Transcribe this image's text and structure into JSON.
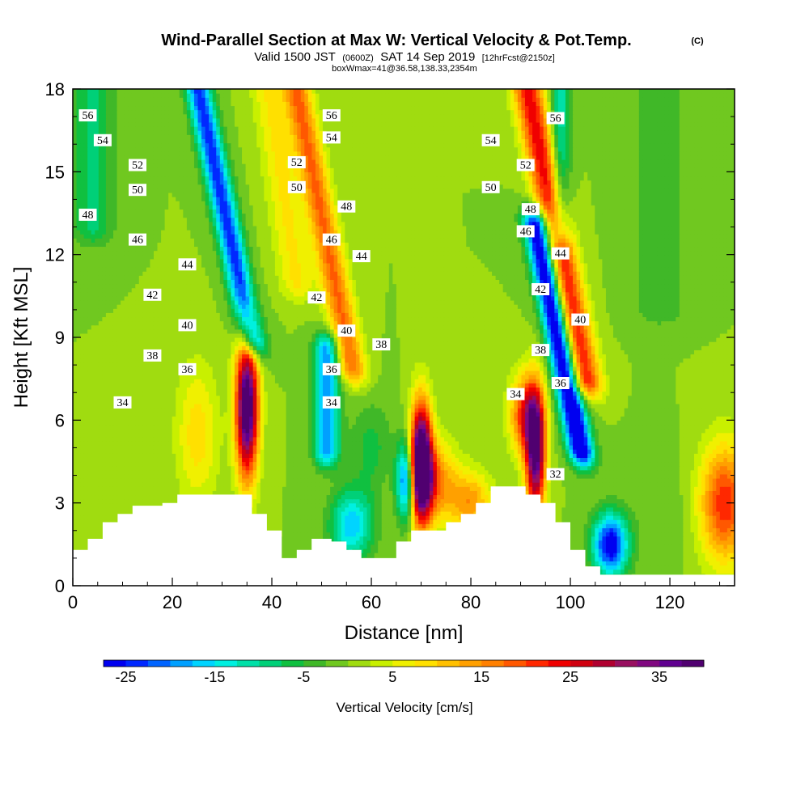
{
  "chart_data": {
    "type": "heatmap",
    "title": "Wind-Parallel Section at Max W: Vertical Velocity & Pot.Temp.",
    "title_mark": "(C)",
    "subtitle_parts": [
      "Valid 1500 JST",
      "(0600Z)",
      "SAT 14 Sep 2019",
      "[12hrFcst@2150z]"
    ],
    "subtitle2": "boxWmax=41@36.58,138.33,2354m",
    "xlabel": "Distance [nm]",
    "ylabel": "Height [Kft MSL]",
    "xlim": [
      0,
      133
    ],
    "ylim": [
      0,
      18
    ],
    "x_ticks": [
      "0",
      "20",
      "40",
      "60",
      "80",
      "100",
      "120"
    ],
    "y_ticks": [
      "0",
      "3",
      "6",
      "9",
      "12",
      "15",
      "18"
    ],
    "colorbar": {
      "label": "Vertical Velocity [cm/s]",
      "ticks": [
        "-25",
        "-15",
        "-5",
        "5",
        "15",
        "25",
        "35"
      ],
      "min": -27.5,
      "max": 40,
      "step": 2.5,
      "colors": [
        "#0000f0",
        "#0028ff",
        "#0064ff",
        "#00a0ff",
        "#00d4ff",
        "#00f0e0",
        "#00e0a8",
        "#00d078",
        "#10c040",
        "#40b828",
        "#70c820",
        "#a0dc10",
        "#c8f000",
        "#f0f000",
        "#ffe000",
        "#ffc000",
        "#ffa000",
        "#ff8000",
        "#ff5800",
        "#ff2800",
        "#f00000",
        "#d00010",
        "#b00030",
        "#981060",
        "#800880",
        "#600090",
        "#500070"
      ]
    },
    "terrain": [
      [
        0,
        1.3
      ],
      [
        3,
        1.3
      ],
      [
        3,
        1.7
      ],
      [
        6,
        1.7
      ],
      [
        6,
        2.3
      ],
      [
        9,
        2.3
      ],
      [
        9,
        2.6
      ],
      [
        12,
        2.6
      ],
      [
        12,
        2.9
      ],
      [
        18,
        2.9
      ],
      [
        18,
        3.0
      ],
      [
        21,
        3.0
      ],
      [
        21,
        3.3
      ],
      [
        36,
        3.3
      ],
      [
        36,
        2.6
      ],
      [
        39,
        2.6
      ],
      [
        39,
        2.0
      ],
      [
        42,
        2.0
      ],
      [
        42,
        1.0
      ],
      [
        45,
        1.0
      ],
      [
        45,
        1.3
      ],
      [
        48,
        1.3
      ],
      [
        48,
        1.7
      ],
      [
        52,
        1.7
      ],
      [
        52,
        1.6
      ],
      [
        55,
        1.6
      ],
      [
        55,
        1.3
      ],
      [
        58,
        1.3
      ],
      [
        58,
        1.0
      ],
      [
        65,
        1.0
      ],
      [
        65,
        1.6
      ],
      [
        68,
        1.6
      ],
      [
        68,
        2.0
      ],
      [
        75,
        2.0
      ],
      [
        75,
        2.3
      ],
      [
        78,
        2.3
      ],
      [
        78,
        2.6
      ],
      [
        81,
        2.6
      ],
      [
        81,
        3.0
      ],
      [
        84,
        3.0
      ],
      [
        84,
        3.6
      ],
      [
        91,
        3.6
      ],
      [
        91,
        3.3
      ],
      [
        94,
        3.3
      ],
      [
        94,
        3.0
      ],
      [
        97,
        3.0
      ],
      [
        97,
        2.3
      ],
      [
        100,
        2.3
      ],
      [
        100,
        1.3
      ],
      [
        103,
        1.3
      ],
      [
        103,
        0.7
      ],
      [
        106,
        0.7
      ],
      [
        106,
        0.4
      ],
      [
        133,
        0.4
      ],
      [
        133,
        0
      ],
      [
        0,
        0
      ]
    ],
    "velocity_features": [
      {
        "x": 35,
        "z": 6.5,
        "sx": 1.6,
        "sz": 1.8,
        "w": 44
      },
      {
        "x": 70,
        "z": 4.5,
        "sx": 1.5,
        "sz": 1.5,
        "w": 48
      },
      {
        "x": 72,
        "z": 3.8,
        "sx": 3.5,
        "sz": 1.0,
        "w": 18
      },
      {
        "x": 93,
        "z": 4.8,
        "sx": 1.4,
        "sz": 1.6,
        "w": 38
      },
      {
        "x": 91,
        "z": 6.2,
        "sx": 2.2,
        "sz": 1.0,
        "w": 22
      },
      {
        "x": 80,
        "z": 3.0,
        "sx": 3.0,
        "sz": 0.8,
        "w": 14
      },
      {
        "x": 25,
        "z": 5.5,
        "sx": 3.0,
        "sz": 1.8,
        "w": 9
      },
      {
        "x": 131,
        "z": 3.0,
        "sx": 3.5,
        "sz": 1.5,
        "w": 22
      },
      {
        "x": 67,
        "z": 3.8,
        "sx": 1.4,
        "sz": 1.0,
        "w": -28
      },
      {
        "x": 56,
        "z": 2.2,
        "sx": 3.0,
        "sz": 0.9,
        "w": -17
      },
      {
        "x": 108,
        "z": 1.5,
        "sx": 2.5,
        "sz": 0.8,
        "w": -28
      },
      {
        "x": 60,
        "z": 5.0,
        "sx": 3.0,
        "sz": 1.2,
        "w": -6
      },
      {
        "x": 118,
        "z": 2.5,
        "sx": 4.0,
        "sz": 1.5,
        "w": -2
      }
    ],
    "velocity_bands": [
      {
        "x0": 36,
        "z0": 9,
        "z1": 18,
        "slope": -1.2,
        "sx": 1.8,
        "w": -24
      },
      {
        "x0": 56,
        "z0": 8,
        "z1": 18,
        "slope": -1.1,
        "sx": 2.0,
        "w": 18
      },
      {
        "x0": 51,
        "z0": 5,
        "z1": 8.5,
        "slope": 0,
        "sx": 1.8,
        "w": -20
      },
      {
        "x0": 102,
        "z0": 5,
        "z1": 13,
        "slope": -1.1,
        "sx": 1.8,
        "w": -32
      },
      {
        "x0": 103,
        "z0": 7.5,
        "z1": 18,
        "slope": -1.1,
        "sx": 2.2,
        "w": 24
      },
      {
        "x0": 98,
        "z0": 13,
        "z1": 18,
        "slope": 0,
        "sx": 1.4,
        "w": -12
      },
      {
        "x0": 45,
        "z0": 11,
        "z1": 18,
        "slope": -0.8,
        "sx": 2.5,
        "w": 8
      },
      {
        "x0": 4,
        "z0": 13,
        "z1": 18,
        "slope": 0,
        "sx": 3.0,
        "w": -8
      },
      {
        "x0": 118,
        "z0": 10,
        "z1": 18,
        "slope": 0,
        "sx": 4.0,
        "w": -4
      }
    ],
    "isentropes": {
      "min": 30,
      "max": 58,
      "step": 0.5,
      "unit_note": "pot.temp contours, labelled every 2"
    },
    "contour_labels": [
      {
        "text": "56",
        "x": 3,
        "z": 17.0
      },
      {
        "text": "54",
        "x": 6,
        "z": 16.1
      },
      {
        "text": "52",
        "x": 13,
        "z": 15.2
      },
      {
        "text": "50",
        "x": 13,
        "z": 14.3
      },
      {
        "text": "48",
        "x": 3,
        "z": 13.4
      },
      {
        "text": "46",
        "x": 13,
        "z": 12.5
      },
      {
        "text": "44",
        "x": 23,
        "z": 11.6
      },
      {
        "text": "42",
        "x": 16,
        "z": 10.5
      },
      {
        "text": "40",
        "x": 23,
        "z": 9.4
      },
      {
        "text": "38",
        "x": 16,
        "z": 8.3
      },
      {
        "text": "36",
        "x": 23,
        "z": 7.8
      },
      {
        "text": "34",
        "x": 10,
        "z": 6.6
      },
      {
        "text": "56",
        "x": 52,
        "z": 17.0
      },
      {
        "text": "54",
        "x": 52,
        "z": 16.2
      },
      {
        "text": "52",
        "x": 45,
        "z": 15.3
      },
      {
        "text": "50",
        "x": 45,
        "z": 14.4
      },
      {
        "text": "48",
        "x": 55,
        "z": 13.7
      },
      {
        "text": "46",
        "x": 52,
        "z": 12.5
      },
      {
        "text": "44",
        "x": 58,
        "z": 11.9
      },
      {
        "text": "42",
        "x": 49,
        "z": 10.4
      },
      {
        "text": "40",
        "x": 55,
        "z": 9.2
      },
      {
        "text": "38",
        "x": 62,
        "z": 8.7
      },
      {
        "text": "36",
        "x": 52,
        "z": 7.8
      },
      {
        "text": "34",
        "x": 52,
        "z": 6.6
      },
      {
        "text": "56",
        "x": 97,
        "z": 16.9
      },
      {
        "text": "54",
        "x": 84,
        "z": 16.1
      },
      {
        "text": "52",
        "x": 91,
        "z": 15.2
      },
      {
        "text": "50",
        "x": 84,
        "z": 14.4
      },
      {
        "text": "48",
        "x": 92,
        "z": 13.6
      },
      {
        "text": "46",
        "x": 91,
        "z": 12.8
      },
      {
        "text": "44",
        "x": 98,
        "z": 12.0
      },
      {
        "text": "42",
        "x": 94,
        "z": 10.7
      },
      {
        "text": "40",
        "x": 102,
        "z": 9.6
      },
      {
        "text": "38",
        "x": 94,
        "z": 8.5
      },
      {
        "text": "36",
        "x": 98,
        "z": 7.3
      },
      {
        "text": "34",
        "x": 89,
        "z": 6.9
      },
      {
        "text": "32",
        "x": 97,
        "z": 4.0
      }
    ]
  }
}
